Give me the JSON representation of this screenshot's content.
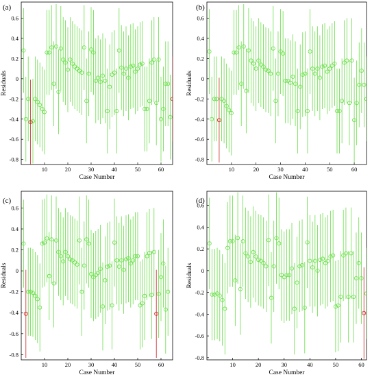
{
  "colors": {
    "normal": "#66dd44",
    "outlier": "#cc2222",
    "axis": "#000000"
  },
  "chart_data": [
    {
      "panel": "(a)",
      "type": "scatter",
      "xlabel": "Case Number",
      "ylabel": "Residuals",
      "xlim": [
        0,
        65
      ],
      "ylim": [
        -0.85,
        0.76
      ],
      "xticks": [
        10,
        20,
        30,
        40,
        50,
        60
      ],
      "yticks": [
        -0.8,
        -0.6,
        -0.4,
        -0.2,
        0,
        0.2,
        0.4,
        0.6
      ],
      "residuals": [
        0.28,
        -0.4,
        -0.2,
        -0.43,
        -0.42,
        -0.2,
        -0.23,
        -0.26,
        -0.3,
        -0.33,
        0.26,
        0.26,
        0.31,
        -0.05,
        0.32,
        -0.13,
        0.3,
        0.19,
        0.16,
        0.09,
        0.19,
        0.15,
        0.12,
        0.1,
        0.08,
        0.06,
        0.31,
        -0.22,
        0.05,
        0.29,
        0.26,
        -0.02,
        0.01,
        -0.03,
        0.03,
        -0.02,
        -0.32,
        -0.08,
        0.04,
        0.06,
        -0.32,
        0.28,
        0.11,
        0.05,
        0.1,
        0.01,
        0.12,
        0.13,
        0.07,
        0.1,
        0.14,
        0.15,
        -0.3,
        -0.3,
        -0.22,
        0.16,
        0.19,
        -0.24,
        0.19,
        -0.4,
        -0.3,
        -0.05,
        -0.05,
        -0.38,
        -0.2
      ],
      "interval_half_width": 0.42,
      "outliers": [
        4,
        65
      ]
    },
    {
      "panel": "(b)",
      "type": "scatter",
      "xlabel": "Case Number",
      "ylabel": "Residuals",
      "xlim": [
        0,
        65
      ],
      "ylim": [
        -0.85,
        0.76
      ],
      "xticks": [
        10,
        20,
        30,
        40,
        50,
        60
      ],
      "yticks": [
        -0.8,
        -0.6,
        -0.4,
        -0.2,
        0,
        0.2,
        0.4,
        0.6
      ],
      "residuals": [
        0.27,
        -0.4,
        -0.2,
        -0.2,
        -0.41,
        -0.2,
        -0.22,
        -0.27,
        -0.31,
        -0.34,
        0.26,
        0.26,
        0.31,
        -0.05,
        0.32,
        -0.12,
        0.28,
        0.18,
        0.15,
        0.1,
        0.18,
        0.14,
        0.12,
        0.09,
        0.08,
        0.05,
        0.3,
        -0.22,
        0.05,
        0.27,
        0.25,
        -0.02,
        -0.02,
        -0.04,
        0.02,
        -0.05,
        -0.32,
        -0.08,
        0.04,
        0.05,
        -0.32,
        0.27,
        0.1,
        0.05,
        0.1,
        0.01,
        0.12,
        0.13,
        0.07,
        0.1,
        0.13,
        0.15,
        -0.32,
        -0.32,
        -0.22,
        0.16,
        0.18,
        -0.24,
        0.18,
        -0.41,
        -0.24,
        -0.06,
        0.08,
        -0.06,
        -0.2
      ],
      "interval_half_width": 0.42,
      "outliers": [
        5
      ]
    },
    {
      "panel": "(c)",
      "type": "scatter",
      "xlabel": "Case Number",
      "ylabel": "Residuals",
      "xlim": [
        0,
        65
      ],
      "ylim": [
        -0.85,
        0.76
      ],
      "xticks": [
        10,
        20,
        30,
        40,
        50,
        60
      ],
      "yticks": [
        -0.8,
        -0.6,
        -0.4,
        -0.2,
        0,
        0.2,
        0.4,
        0.6
      ],
      "residuals": [
        0.26,
        -0.41,
        -0.2,
        -0.2,
        -0.21,
        -0.24,
        -0.27,
        -0.35,
        0.26,
        0.27,
        0.31,
        -0.05,
        0.3,
        -0.12,
        0.29,
        0.18,
        0.14,
        0.09,
        0.18,
        0.14,
        0.11,
        0.1,
        0.08,
        0.06,
        0.29,
        -0.2,
        0.05,
        0.3,
        0.26,
        -0.03,
        -0.06,
        -0.04,
        -0.02,
        0.02,
        -0.34,
        -0.09,
        0.04,
        0.05,
        -0.33,
        0.27,
        0.1,
        0.04,
        0.1,
        0.01,
        0.11,
        0.12,
        0.07,
        0.1,
        0.14,
        0.14,
        -0.33,
        -0.31,
        -0.24,
        0.14,
        0.17,
        -0.23,
        0.18,
        -0.41,
        -0.22,
        -0.06,
        0.07,
        -0.37,
        -0.2
      ],
      "interval_half_width": 0.42,
      "outliers": [
        2,
        58
      ]
    },
    {
      "panel": "(d)",
      "type": "scatter",
      "xlabel": "Case Number",
      "ylabel": "Residuals",
      "xlim": [
        0,
        62
      ],
      "ylim": [
        -0.82,
        0.73
      ],
      "xticks": [
        10,
        20,
        30,
        40,
        50,
        60
      ],
      "yticks": [
        -0.8,
        -0.6,
        -0.4,
        -0.2,
        0,
        0.2,
        0.4,
        0.6
      ],
      "residuals": [
        0.25,
        -0.22,
        -0.22,
        -0.21,
        -0.23,
        -0.27,
        -0.35,
        0.21,
        0.27,
        0.27,
        -0.09,
        0.3,
        -0.17,
        0.27,
        0.16,
        0.13,
        0.08,
        0.17,
        0.13,
        0.1,
        0.09,
        0.07,
        0.04,
        0.28,
        -0.25,
        0.04,
        0.3,
        0.25,
        -0.04,
        -0.06,
        -0.04,
        -0.04,
        0.02,
        -0.35,
        -0.11,
        0.04,
        0.05,
        -0.34,
        0.26,
        0.09,
        0.03,
        0.09,
        0.0,
        0.1,
        0.11,
        0.07,
        0.09,
        0.13,
        0.14,
        -0.33,
        -0.32,
        -0.24,
        0.14,
        0.16,
        -0.24,
        0.16,
        -0.24,
        -0.07,
        0.07,
        -0.07,
        -0.39,
        -0.21
      ],
      "interval_half_width": 0.42,
      "outliers": [
        61
      ]
    }
  ]
}
